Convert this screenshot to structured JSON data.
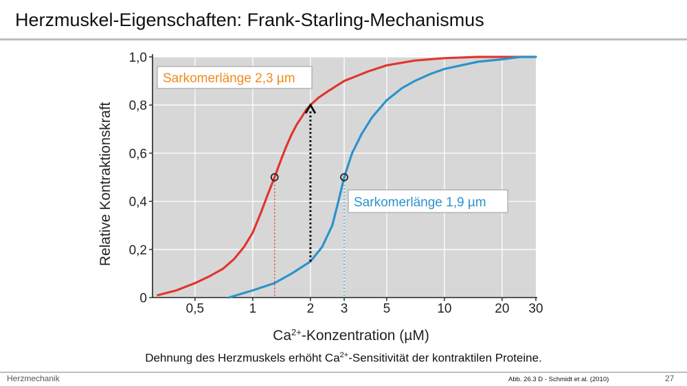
{
  "slide": {
    "title": "Herzmuskel-Eigenschaften: Frank-Starling-Mechanismus",
    "caption_pre": "Dehnung des Herzmuskels erhöht Ca",
    "caption_sup": "2+",
    "caption_post": "-Sensitivität der kontraktilen Proteine.",
    "footer_left": "Herzmechanik",
    "footer_source": "Abb. 26.3 D -  Schmidt et al. (2010)",
    "page_number": "27"
  },
  "chart_data": {
    "type": "line",
    "xscale": "log",
    "xlim": [
      0.3,
      30
    ],
    "ylim": [
      0,
      1.0
    ],
    "xlabel_pre": "Ca",
    "xlabel_sup": "2+",
    "xlabel_post": "-Konzentration (µM)",
    "ylabel": "Relative Kontraktionskraft",
    "xticks": [
      {
        "value": 0.5,
        "label": "0,5"
      },
      {
        "value": 1,
        "label": "1"
      },
      {
        "value": 2,
        "label": "2"
      },
      {
        "value": 3,
        "label": "3"
      },
      {
        "value": 5,
        "label": "5"
      },
      {
        "value": 10,
        "label": "10"
      },
      {
        "value": 20,
        "label": "20"
      },
      {
        "value": 30,
        "label": "30"
      }
    ],
    "yticks": [
      {
        "value": 0,
        "label": "0"
      },
      {
        "value": 0.2,
        "label": "0,2"
      },
      {
        "value": 0.4,
        "label": "0,4"
      },
      {
        "value": 0.6,
        "label": "0,6"
      },
      {
        "value": 0.8,
        "label": "0,8"
      },
      {
        "value": 1.0,
        "label": "1,0"
      }
    ],
    "grid": true,
    "series": [
      {
        "name": "Sarkomerlänge 2,3 µm",
        "color": "#e0362b",
        "x": [
          0.32,
          0.4,
          0.5,
          0.6,
          0.7,
          0.8,
          0.9,
          1.0,
          1.1,
          1.2,
          1.3,
          1.4,
          1.5,
          1.6,
          1.7,
          1.8,
          1.9,
          2.0,
          2.2,
          2.5,
          3.0,
          4.0,
          5.0,
          7.0,
          10,
          15,
          20,
          30
        ],
        "y": [
          0.01,
          0.03,
          0.06,
          0.09,
          0.12,
          0.16,
          0.21,
          0.27,
          0.35,
          0.43,
          0.5,
          0.57,
          0.63,
          0.68,
          0.72,
          0.75,
          0.78,
          0.8,
          0.83,
          0.86,
          0.9,
          0.94,
          0.965,
          0.985,
          0.995,
          1.0,
          1.0,
          1.0
        ]
      },
      {
        "name": "Sarkomerlänge 1,9 µm",
        "color": "#2a93cc",
        "x": [
          0.75,
          1.0,
          1.3,
          1.6,
          2.0,
          2.3,
          2.6,
          2.8,
          3.0,
          3.3,
          3.7,
          4.2,
          5.0,
          6.0,
          7.0,
          8.5,
          10,
          15,
          20,
          25,
          30
        ],
        "y": [
          0.0,
          0.03,
          0.06,
          0.1,
          0.15,
          0.21,
          0.3,
          0.4,
          0.5,
          0.6,
          0.68,
          0.75,
          0.82,
          0.87,
          0.9,
          0.93,
          0.95,
          0.98,
          0.99,
          1.0,
          1.0
        ]
      }
    ],
    "markers": [
      {
        "x": 1.3,
        "y": 0.5,
        "color": "#e0362b"
      },
      {
        "x": 3.0,
        "y": 0.5,
        "color": "#2a93cc"
      }
    ],
    "arrow": {
      "x": 2.0,
      "y_from": 0.15,
      "y_to": 0.8
    },
    "labels": [
      {
        "text": "Sarkomerlänge 2,3 µm",
        "color": "#f08a1c"
      },
      {
        "text": "Sarkomerlänge 1,9 µm",
        "color": "#2a93cc"
      }
    ]
  }
}
